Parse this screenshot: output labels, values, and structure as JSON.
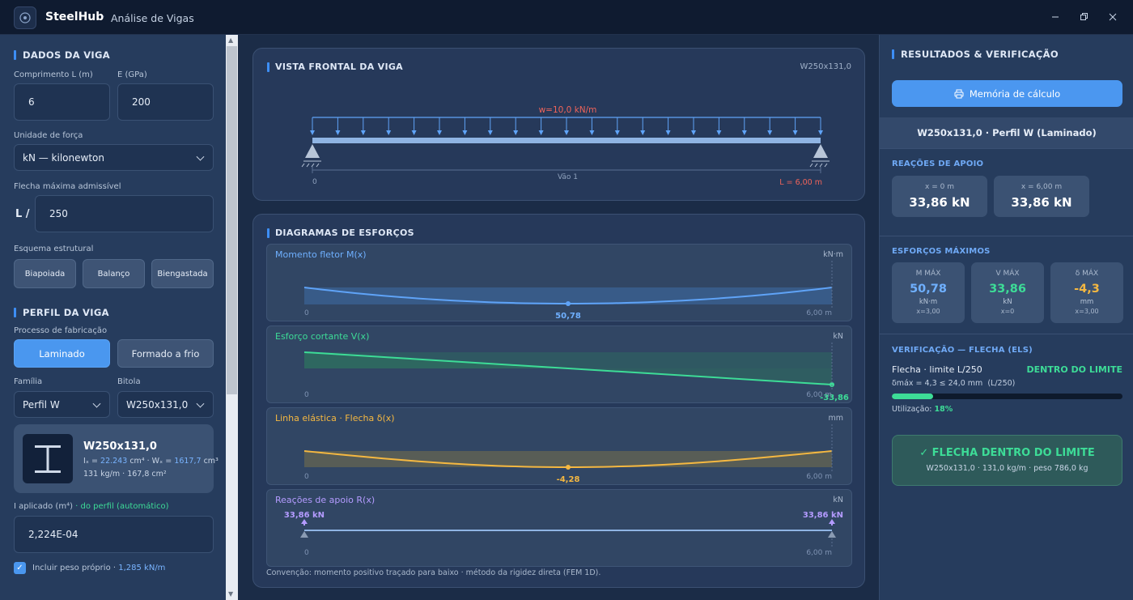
{
  "app": {
    "name": "SteelHub",
    "separator": "·",
    "subtitle": "Análise de Vigas"
  },
  "window": {
    "minimize_icon": "minimize-icon",
    "restore_icon": "restore-icon",
    "close_icon": "close-icon"
  },
  "left": {
    "beam_data": {
      "title": "DADOS DA VIGA",
      "length_label": "Comprimento L (m)",
      "length_value": "6",
      "e_label": "E (GPa)",
      "e_value": "200",
      "force_unit_label": "Unidade de força",
      "force_unit_value": "kN — kilonewton",
      "deflection_label": "Flecha máxima admissível",
      "deflection_prefix": "L /",
      "deflection_value": "250",
      "scheme_label": "Esquema estrutural",
      "schemes": [
        "Biapoiada",
        "Balanço",
        "Biengastada"
      ]
    },
    "profile": {
      "title": "PERFIL DA VIGA",
      "process_label": "Processo de fabricação",
      "process_options": [
        "Laminado",
        "Formado a frio"
      ],
      "family_label": "Família",
      "family_value": "Perfil W",
      "gauge_label": "Bitola",
      "gauge_value": "W250x131,0",
      "card_name": "W250x131,0",
      "ix_label": "Iₓ =",
      "ix_value": "22.243",
      "ix_unit": "cm⁴ · Wₓ =",
      "wx_value": "1617,7",
      "wx_unit": "cm³",
      "card_line2": "131 kg/m · 167,8 cm²",
      "i_applied_label": "I aplicado (m⁴)",
      "i_applied_note": "· do perfil (automático)",
      "i_applied_value": "2,224E-04",
      "selfweight_label": "Incluir peso próprio ·",
      "selfweight_value": "1,285 kN/m"
    }
  },
  "front_view": {
    "title": "VISTA FRONTAL DA VIGA",
    "profile": "W250x131,0",
    "load_label": "w=10,0 kN/m",
    "span_label": "Vão 1",
    "x0": "0",
    "length_label": "L = 6,00 m"
  },
  "diagrams": {
    "title": "DIAGRAMAS DE ESFORÇOS",
    "moment": {
      "title": "Momento fletor M(x)",
      "unit": "kN·m",
      "x0": "0",
      "xend": "6,00 m",
      "peak": "50,78"
    },
    "shear": {
      "title": "Esforço cortante V(x)",
      "unit": "kN",
      "x0": "0",
      "xend": "6,00 m",
      "end_value": "-33,86"
    },
    "elastic": {
      "title": "Linha elástica · Flecha δ(x)",
      "unit": "mm",
      "x0": "0",
      "xend": "6,00 m",
      "peak": "-4,28"
    },
    "reactions": {
      "title": "Reações de apoio R(x)",
      "unit": "kN",
      "x0": "0",
      "xend": "6,00 m",
      "left": "33,86 kN",
      "right": "33,86 kN"
    },
    "note": "Convenção: momento positivo traçado para baixo · método da rigidez direta (FEM 1D)."
  },
  "right": {
    "title": "RESULTADOS & VERIFICAÇÃO",
    "memory_button": "Memória de cálculo",
    "profile_line": "W250x131,0 · Perfil W (Laminado)",
    "reactions_label": "REAÇÕES DE APOIO",
    "reactions": [
      {
        "x": "x = 0 m",
        "value": "33,86 kN"
      },
      {
        "x": "x = 6,00 m",
        "value": "33,86 kN"
      }
    ],
    "max_label": "ESFORÇOS MÁXIMOS",
    "max": [
      {
        "head": "M MÁX",
        "value": "50,78",
        "unit": "kN·m",
        "pos": "x=3,00",
        "color": "#6fb0ff"
      },
      {
        "head": "V MÁX",
        "value": "33,86",
        "unit": "kN",
        "pos": "x=0",
        "color": "#3ddc97"
      },
      {
        "head": "δ MÁX",
        "value": "-4,3",
        "unit": "mm",
        "pos": "x=3,00",
        "color": "#f5b841"
      }
    ],
    "verify_label": "VERIFICAÇÃO — FLECHA (ELS)",
    "verify_title": "Flecha · limite L/250",
    "verify_status": "DENTRO DO LIMITE",
    "verify_formula": "δmáx = 4,3 ≤ 24,0 mm  (L/250)",
    "utilization_label": "Utilização:",
    "utilization_value": "18%",
    "utilization_fraction": 0.18,
    "ok_title": "✓ FLECHA DENTRO DO LIMITE",
    "ok_sub": "W250x131,0 · 131,0 kg/m · peso 786,0 kg"
  }
}
